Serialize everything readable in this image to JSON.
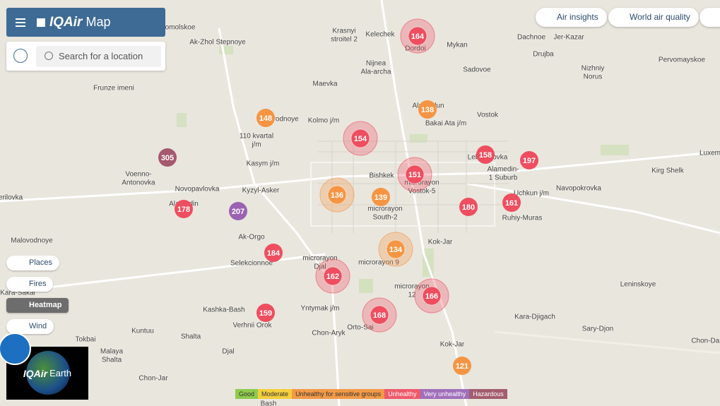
{
  "header": {
    "brand": "IQAir",
    "product": "Map"
  },
  "search": {
    "placeholder": "Search for a location"
  },
  "top_buttons": [
    "Air insights",
    "World air quality"
  ],
  "layers": [
    "Places",
    "Fires",
    "Heatmap",
    "Wind"
  ],
  "earth": {
    "brand": "IQAir",
    "product": "Earth"
  },
  "legend": [
    "Good",
    "Moderate",
    "Unhealthy for sensitive groups",
    "Unhealthy",
    "Very unhealthy",
    "Hazardous"
  ],
  "places": [
    [
      "omolskoe"
    ],
    [
      "Krasnyi",
      "stroitel 2"
    ],
    [
      "Kelechek"
    ],
    [
      "Ak-Zhol Stepnoye"
    ],
    [
      "Nijnea",
      "Ala-archa"
    ],
    [
      "Mykan"
    ],
    [
      "Dachnoe"
    ],
    [
      "Jer-Kazar"
    ],
    [
      "Drujba"
    ],
    [
      "Pervomayskoe"
    ],
    [
      "Nizhniy",
      "Norus"
    ],
    [
      "Sadovoe"
    ],
    [
      "Maevka"
    ],
    [
      "Frunze imeni"
    ],
    [
      "Dordoi"
    ],
    [
      "Alamedun"
    ],
    [
      "Vostok"
    ],
    [
      "Bakai Ata j/m"
    ],
    [
      "Kolmo j/m"
    ],
    [
      "Prigorodnoye"
    ],
    [
      "110 kvartal",
      "j/m"
    ],
    [
      "Kasym j/m"
    ],
    [
      "Lebedinovka"
    ],
    [
      "Alamedin-",
      "1 Suburb"
    ],
    [
      "Luxem"
    ],
    [
      "Kirg Shelk"
    ],
    [
      "Voenno-",
      "Antonovka"
    ],
    [
      "Bishkek"
    ],
    [
      "microrayon",
      "Vostok-5"
    ],
    [
      "Novopavlovka"
    ],
    [
      "Kyzyl-Asker"
    ],
    [
      "Navopokrovka"
    ],
    [
      "Uchkun j/m"
    ],
    [
      "Ruhiy-Muras"
    ],
    [
      "erilovka"
    ],
    [
      "Alamedin"
    ],
    [
      "microrayon",
      "South-2"
    ],
    [
      "Ak-Orgo"
    ],
    [
      "Kok-Jar"
    ],
    [
      "Malovodnoye"
    ],
    [
      "Selekcionnoe"
    ],
    [
      "microrayon",
      "Djal"
    ],
    [
      "microrayon 9"
    ],
    [
      "Leninskoye"
    ],
    [
      "Kara-Sakal"
    ],
    [
      "microrayon",
      "12"
    ],
    [
      "Kashka-Bash"
    ],
    [
      "Yntymak j/m"
    ],
    [
      "Kara-Djigach"
    ],
    [
      "Verhnii Orok"
    ],
    [
      "Kuntuu"
    ],
    [
      "Sary-Djon"
    ],
    [
      "Chon-Aryk"
    ],
    [
      "Orto-Sai"
    ],
    [
      "Shalta"
    ],
    [
      "Tokbai"
    ],
    [
      "Kok-Jar"
    ],
    [
      "Chon-Dar"
    ],
    [
      "Djal"
    ],
    [
      "Malaya",
      "Shalta"
    ],
    [
      "Chon-Jar"
    ],
    [
      "Bash"
    ]
  ],
  "markers": [
    164,
    148,
    138,
    154,
    305,
    158,
    197,
    151,
    136,
    139,
    180,
    161,
    178,
    207,
    134,
    184,
    162,
    166,
    168,
    159,
    121
  ]
}
